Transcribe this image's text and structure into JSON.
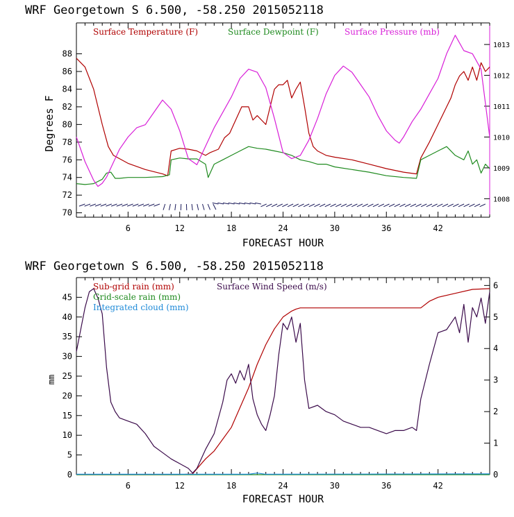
{
  "colors": {
    "temperature": "#b00000",
    "dewpoint": "#1e8a1e",
    "pressure": "#d81ed8",
    "subgrid_rain": "#b00000",
    "grid_rain": "#1e8a1e",
    "cloud": "#1e8ad8",
    "wind": "#3a0a4a",
    "barbs": "#1a1a5a"
  },
  "chart_data": [
    {
      "type": "line",
      "title": "WRF   Georgetown S   6.500, -58.250  2015052118",
      "xlabel": "FORECAST HOUR",
      "ylabel": "Degrees F",
      "xlim": [
        0,
        48
      ],
      "ylim": [
        69.5,
        91.5
      ],
      "y2lim": [
        1007.4,
        1013.7
      ],
      "xticks": [
        6,
        12,
        18,
        24,
        30,
        36,
        42
      ],
      "yticks": [
        70,
        72,
        74,
        76,
        78,
        80,
        82,
        84,
        86,
        88
      ],
      "y2ticks": [
        1008,
        1009,
        1010,
        1011,
        1012,
        1013
      ],
      "legend": [
        "Surface Temperature (F)",
        "Surface Dewpoint (F)",
        "Surface Pressure (mb)"
      ],
      "series": [
        {
          "name": "Surface Temperature (F)",
          "axis": "left",
          "x": [
            0,
            1,
            2,
            3,
            3.7,
            4.3,
            6,
            8,
            10,
            10.6,
            11,
            12,
            13,
            14,
            15,
            15.5,
            16.5,
            17.2,
            17.8,
            18.5,
            19.2,
            20,
            20.5,
            21,
            21.5,
            22,
            23,
            23.5,
            24,
            24.5,
            25,
            25.5,
            26,
            26.5,
            27,
            27.5,
            28,
            29,
            30,
            32,
            34,
            36,
            38,
            39.5,
            40,
            41,
            42,
            43,
            43.5,
            44,
            44.5,
            45,
            45.5,
            46,
            46.5,
            47,
            47.5,
            48
          ],
          "y": [
            87.5,
            86.5,
            84,
            80,
            77.5,
            76.5,
            75.6,
            74.9,
            74.4,
            74.2,
            77,
            77.3,
            77.2,
            77.0,
            76.5,
            76.8,
            77.2,
            78.5,
            79,
            80.5,
            82,
            82,
            80.5,
            81,
            80.5,
            80,
            84,
            84.5,
            84.5,
            85,
            83,
            84,
            84.8,
            82,
            79,
            77.5,
            77,
            76.5,
            76.3,
            76.0,
            75.5,
            75.0,
            74.6,
            74.4,
            76.2,
            78,
            80,
            82,
            83,
            84.5,
            85.5,
            86,
            85,
            86.5,
            85,
            87,
            86,
            86.5
          ]
        },
        {
          "name": "Surface Dewpoint (F)",
          "axis": "left",
          "x": [
            0,
            1,
            2,
            3,
            3.5,
            4,
            4.5,
            5,
            6,
            8,
            10,
            10.8,
            11,
            12,
            13,
            14,
            15,
            15.3,
            16,
            17,
            18,
            19,
            20,
            21,
            22,
            23,
            24,
            25,
            26,
            27,
            28,
            29,
            30,
            32,
            34,
            36,
            38,
            39.5,
            40,
            41,
            42,
            43,
            44,
            45,
            45.5,
            46,
            46.5,
            47,
            47.5,
            48
          ],
          "y": [
            73.3,
            73.2,
            73.3,
            73.8,
            74.5,
            74.6,
            73.9,
            73.9,
            74.0,
            74.0,
            74.1,
            74.3,
            76,
            76.2,
            76.1,
            76.1,
            75.5,
            74,
            75.5,
            76,
            76.5,
            77,
            77.5,
            77.3,
            77.2,
            77,
            76.8,
            76.5,
            76,
            75.8,
            75.5,
            75.5,
            75.2,
            74.9,
            74.6,
            74.2,
            74.0,
            73.9,
            76,
            76.5,
            77,
            77.5,
            76.5,
            76,
            77,
            75.5,
            76,
            74.5,
            75.5,
            75
          ]
        },
        {
          "name": "Surface Pressure (mb)",
          "axis": "right",
          "x": [
            0,
            1,
            2,
            2.5,
            3,
            3.5,
            4,
            5,
            6,
            7,
            8,
            9,
            10,
            11,
            12,
            13,
            14,
            15,
            16,
            17,
            18,
            19,
            20,
            21,
            22,
            23,
            24,
            25,
            26,
            27,
            28,
            29,
            30,
            31,
            32,
            33,
            34,
            35,
            36,
            37,
            37.5,
            38,
            39,
            40,
            41,
            42,
            43,
            44,
            45,
            46,
            47,
            48
          ],
          "y": [
            1010,
            1009.2,
            1008.6,
            1008.4,
            1008.5,
            1008.7,
            1009.0,
            1009.6,
            1010.0,
            1010.3,
            1010.4,
            1010.8,
            1011.2,
            1010.9,
            1010.2,
            1009.3,
            1009.1,
            1009.7,
            1010.3,
            1010.8,
            1011.3,
            1011.9,
            1012.2,
            1012.1,
            1011.6,
            1010.6,
            1009.5,
            1009.3,
            1009.4,
            1009.9,
            1010.6,
            1011.4,
            1012.0,
            1012.3,
            1012.1,
            1011.7,
            1011.3,
            1010.7,
            1010.2,
            1009.9,
            1009.8,
            1010.0,
            1010.5,
            1010.9,
            1011.4,
            1011.9,
            1012.7,
            1013.3,
            1012.8,
            1012.7,
            1012.2,
            1010.0
          ]
        }
      ],
      "wind_barbs": {
        "label": ""
      }
    },
    {
      "type": "line",
      "title": "WRF   Georgetown S   6.500, -58.250  2015052118",
      "xlabel": "FORECAST HOUR",
      "ylabel": "mm",
      "xlim": [
        0,
        48
      ],
      "ylim": [
        0,
        50
      ],
      "y2lim": [
        0,
        6.25
      ],
      "xticks": [
        6,
        12,
        18,
        24,
        30,
        36,
        42
      ],
      "yticks": [
        0,
        5,
        10,
        15,
        20,
        25,
        30,
        35,
        40,
        45
      ],
      "y2ticks": [
        0,
        1,
        2,
        3,
        4,
        5,
        6
      ],
      "legend": [
        "Sub-grid rain (mm)",
        "Grid-scale rain (mm)",
        "Integrated cloud (mm)",
        "Surface Wind Speed (m/s)"
      ],
      "series": [
        {
          "name": "Sub-grid rain (mm)",
          "axis": "left",
          "x": [
            0,
            12,
            13.5,
            14,
            15,
            16,
            17,
            18,
            19,
            20,
            21,
            22,
            23,
            24,
            25,
            25.5,
            26,
            40,
            41,
            42,
            44,
            46,
            48
          ],
          "y": [
            0,
            0,
            0.2,
            1.5,
            4,
            6,
            9,
            12,
            17,
            22,
            28,
            33,
            37,
            40,
            41.5,
            42,
            42.3,
            42.3,
            44,
            45,
            46,
            47,
            47.2
          ]
        },
        {
          "name": "Grid-scale rain (mm)",
          "axis": "left",
          "x": [
            0,
            48
          ],
          "y": [
            0,
            0
          ]
        },
        {
          "name": "Integrated cloud (mm)",
          "axis": "left",
          "x": [
            0,
            20,
            21,
            22,
            48
          ],
          "y": [
            0.1,
            0.1,
            0.4,
            0.1,
            0.2
          ]
        },
        {
          "name": "Surface Wind Speed (m/s)",
          "axis": "right",
          "x": [
            0,
            0.5,
            1,
            1.5,
            2,
            2.5,
            3,
            3.5,
            4,
            4.5,
            5,
            6,
            7,
            8,
            9,
            10,
            11,
            12,
            13,
            13.5,
            14,
            15,
            16,
            17,
            17.5,
            18,
            18.5,
            19,
            19.5,
            20,
            20.5,
            21,
            21.5,
            22,
            22.5,
            23,
            23.5,
            24,
            24.5,
            25,
            25.5,
            26,
            26.5,
            27,
            28,
            29,
            30,
            31,
            32,
            33,
            34,
            35,
            36,
            37,
            38,
            39,
            39.5,
            40,
            41,
            42,
            43,
            44,
            44.5,
            45,
            45.5,
            46,
            46.5,
            47,
            47.5,
            48
          ],
          "y": [
            3.9,
            4.6,
            5.3,
            5.8,
            5.9,
            5.6,
            5.1,
            3.4,
            2.3,
            2.0,
            1.8,
            1.7,
            1.6,
            1.3,
            0.9,
            0.7,
            0.5,
            0.35,
            0.2,
            0.05,
            0.2,
            0.8,
            1.3,
            2.3,
            3.0,
            3.2,
            2.9,
            3.3,
            3.0,
            3.5,
            2.4,
            1.9,
            1.6,
            1.4,
            1.9,
            2.5,
            3.8,
            4.8,
            4.6,
            5.0,
            4.2,
            4.8,
            3.0,
            2.1,
            2.2,
            2.0,
            1.9,
            1.7,
            1.6,
            1.5,
            1.5,
            1.4,
            1.3,
            1.4,
            1.4,
            1.5,
            1.4,
            2.4,
            3.5,
            4.5,
            4.6,
            5.0,
            4.5,
            5.4,
            4.2,
            5.3,
            5.0,
            5.6,
            4.8,
            5.8
          ]
        }
      ]
    }
  ]
}
